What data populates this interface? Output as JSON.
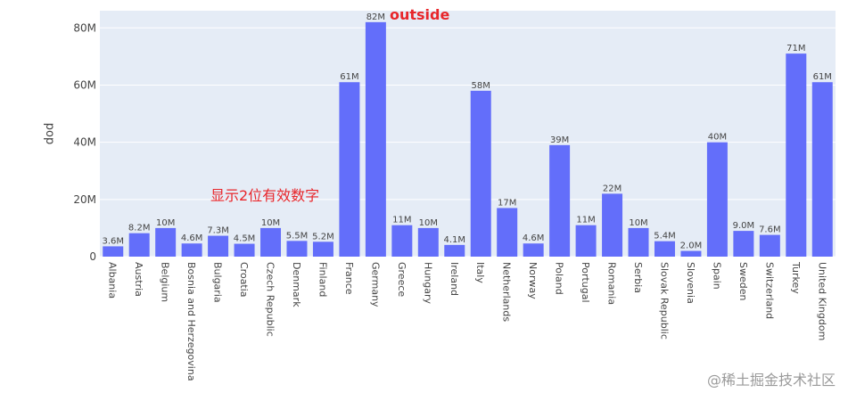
{
  "chart_data": {
    "type": "bar",
    "ylabel": "pop",
    "xlabel": "",
    "ylim": [
      0,
      86
    ],
    "y_unit": "M",
    "y_ticks": [
      {
        "value": 0,
        "label": "0"
      },
      {
        "value": 20,
        "label": "20M"
      },
      {
        "value": 40,
        "label": "40M"
      },
      {
        "value": 60,
        "label": "60M"
      },
      {
        "value": 80,
        "label": "80M"
      }
    ],
    "grid": true,
    "bar_color": "#636efa",
    "plot_bg": "#e5ecf6",
    "categories": [
      "Albania",
      "Austria",
      "Belgium",
      "Bosnia and Herzegovina",
      "Bulgaria",
      "Croatia",
      "Czech Republic",
      "Denmark",
      "Finland",
      "France",
      "Germany",
      "Greece",
      "Hungary",
      "Ireland",
      "Italy",
      "Netherlands",
      "Norway",
      "Poland",
      "Portugal",
      "Romania",
      "Serbia",
      "Slovak Republic",
      "Slovenia",
      "Spain",
      "Sweden",
      "Switzerland",
      "Turkey",
      "United Kingdom"
    ],
    "values": [
      3.6,
      8.2,
      10,
      4.6,
      7.3,
      4.5,
      10,
      5.5,
      5.2,
      61,
      82,
      11,
      10,
      4.1,
      58,
      17,
      4.6,
      39,
      11,
      22,
      10,
      5.4,
      2.0,
      40,
      9.0,
      7.6,
      71,
      61
    ],
    "data_labels": [
      "3.6M",
      "8.2M",
      "10M",
      "4.6M",
      "7.3M",
      "4.5M",
      "10M",
      "5.5M",
      "5.2M",
      "61M",
      "82M",
      "11M",
      "10M",
      "4.1M",
      "58M",
      "17M",
      "4.6M",
      "39M",
      "11M",
      "22M",
      "10M",
      "5.4M",
      "2.0M",
      "40M",
      "9.0M",
      "7.6M",
      "71M",
      "61M"
    ],
    "annotations": [
      "outside",
      "显示2位有效数字"
    ]
  },
  "annotations": {
    "outside": "outside",
    "sig_figs": "显示2位有效数字"
  },
  "watermark": "@稀土掘金技术社区",
  "colors": {
    "annotation": "#e8262b",
    "watermark": "#9a9a9a"
  }
}
